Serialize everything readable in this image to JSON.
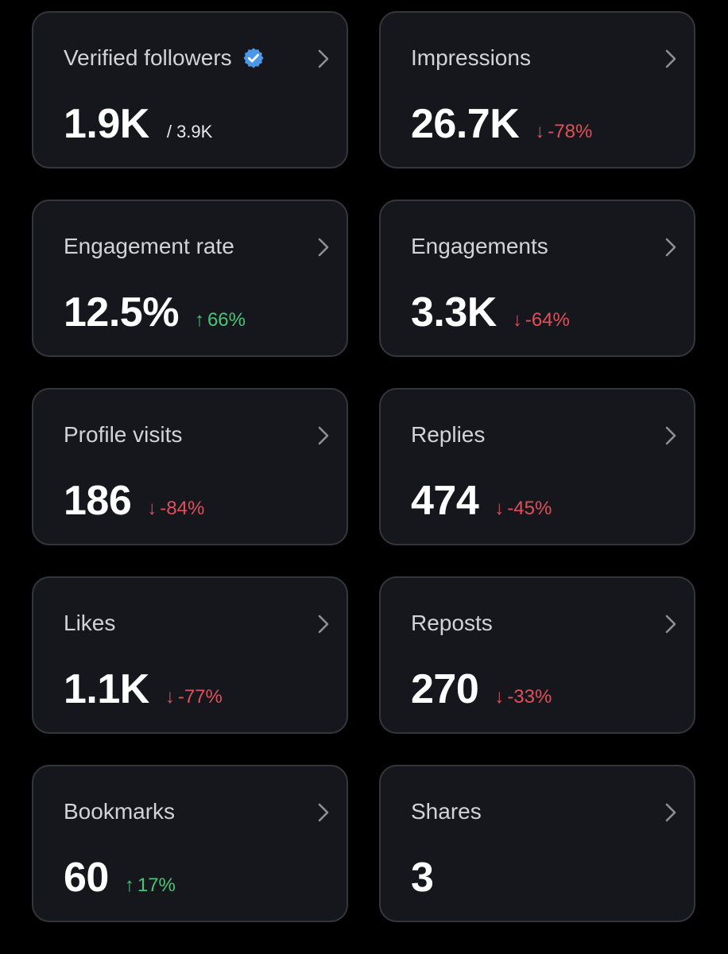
{
  "colors": {
    "background": "#000000",
    "card": "#16171c",
    "card_border": "#35363b",
    "negative": "#e0505a",
    "positive": "#49c47a",
    "verified_badge": "#4a99e9"
  },
  "cards": [
    {
      "title": "Verified followers",
      "value": "1.9K",
      "sub": "/ 3.9K",
      "badge_icon": "verified-badge-icon"
    },
    {
      "title": "Impressions",
      "value": "26.7K",
      "delta_arrow": "↓",
      "delta": "-78%",
      "trend": "down"
    },
    {
      "title": "Engagement rate",
      "value": "12.5%",
      "delta_arrow": "↑",
      "delta": "66%",
      "trend": "up"
    },
    {
      "title": "Engagements",
      "value": "3.3K",
      "delta_arrow": "↓",
      "delta": "-64%",
      "trend": "down"
    },
    {
      "title": "Profile visits",
      "value": "186",
      "delta_arrow": "↓",
      "delta": "-84%",
      "trend": "down"
    },
    {
      "title": "Replies",
      "value": "474",
      "delta_arrow": "↓",
      "delta": "-45%",
      "trend": "down"
    },
    {
      "title": "Likes",
      "value": "1.1K",
      "delta_arrow": "↓",
      "delta": "-77%",
      "trend": "down"
    },
    {
      "title": "Reposts",
      "value": "270",
      "delta_arrow": "↓",
      "delta": "-33%",
      "trend": "down"
    },
    {
      "title": "Bookmarks",
      "value": "60",
      "delta_arrow": "↑",
      "delta": "17%",
      "trend": "up"
    },
    {
      "title": "Shares",
      "value": "3"
    }
  ]
}
